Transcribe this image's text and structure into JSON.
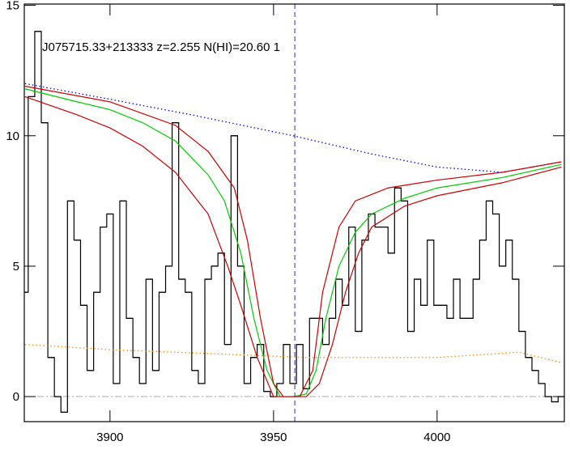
{
  "chart_data": {
    "type": "line",
    "annotation": "J075715.33+213333 z=2.255 N(HI)=20.60 1",
    "xlim": [
      3873.8,
      4038.9
    ],
    "ylim": [
      -0.96,
      15.05
    ],
    "xticks": [
      3900,
      3950,
      4000
    ],
    "yticks": [
      0,
      5,
      10,
      15
    ],
    "reference_x": 3956.5,
    "reference_y": 0,
    "series": [
      {
        "color": "#000000",
        "style": "step",
        "x": [
          3874,
          3876,
          3878,
          3880,
          3882,
          3884,
          3886,
          3888,
          3890,
          3892,
          3894,
          3896,
          3898,
          3900,
          3902,
          3904,
          3906,
          3908,
          3910,
          3912,
          3914,
          3916,
          3918,
          3920,
          3922,
          3924,
          3926,
          3928,
          3930,
          3932,
          3934,
          3936,
          3938,
          3940,
          3942,
          3944,
          3946,
          3948,
          3950,
          3952,
          3954,
          3956,
          3958,
          3960,
          3962,
          3964,
          3966,
          3968,
          3970,
          3972,
          3974,
          3976,
          3978,
          3980,
          3982,
          3984,
          3986,
          3988,
          3990,
          3992,
          3994,
          3996,
          3998,
          4000,
          4002,
          4004,
          4006,
          4008,
          4010,
          4012,
          4014,
          4016,
          4018,
          4020,
          4022,
          4024,
          4026,
          4028,
          4030,
          4032,
          4034,
          4036,
          4038
        ],
        "values": [
          4,
          11.5,
          14,
          10.5,
          1.5,
          0,
          -0.6,
          7.5,
          6,
          3.5,
          1,
          4,
          6.5,
          7,
          0.5,
          7.5,
          3,
          1.5,
          0.5,
          4.5,
          1,
          4,
          5,
          10.5,
          4.5,
          4,
          1,
          0.5,
          4.5,
          5,
          5.5,
          2,
          10,
          5,
          0.5,
          1.5,
          2,
          0.2,
          0,
          0.5,
          2,
          0.5,
          2,
          0.3,
          3,
          3,
          2,
          3,
          4.5,
          3.5,
          6.5,
          2.5,
          6,
          7,
          6.5,
          6.5,
          5.5,
          8,
          7.5,
          2.5,
          4.5,
          3.5,
          6,
          3.5,
          3.5,
          3,
          4.5,
          3,
          3,
          4.5,
          6,
          7.5,
          7,
          5,
          6,
          4.5,
          2.5,
          1.5,
          1,
          0.5,
          0,
          -0.2,
          0
        ]
      },
      {
        "color": "#0000ff",
        "style": "dotted",
        "x": [
          3874,
          3900,
          3925,
          3956,
          3980,
          4000,
          4020,
          4038
        ],
        "values": [
          12,
          11.4,
          10.8,
          10,
          9.3,
          8.8,
          8.6,
          9
        ]
      },
      {
        "color": "#00cc00",
        "style": "solid",
        "x": [
          3874,
          3890,
          3900,
          3910,
          3920,
          3930,
          3935,
          3940,
          3944,
          3948,
          3952,
          3956,
          3960,
          3963,
          3966,
          3970,
          3975,
          3980,
          3990,
          4000,
          4020,
          4038
        ],
        "values": [
          11.8,
          11.3,
          11,
          10.5,
          9.8,
          8.5,
          7.5,
          5.5,
          3,
          1,
          0,
          0,
          0.1,
          1,
          3,
          5,
          6.3,
          7,
          7.6,
          8,
          8.4,
          8.9
        ]
      },
      {
        "color": "#cc0000",
        "style": "solid",
        "x": [
          3874,
          3900,
          3920,
          3930,
          3938,
          3942,
          3946,
          3950,
          3953,
          3958,
          3962,
          3965,
          3970,
          3975,
          3985,
          4000,
          4020,
          4038
        ],
        "values": [
          11.9,
          11.3,
          10.4,
          9.4,
          8,
          6,
          3,
          0.5,
          0,
          0,
          1,
          4,
          6.5,
          7.5,
          8,
          8.3,
          8.6,
          9
        ]
      },
      {
        "color": "#cc0000",
        "style": "solid",
        "x": [
          3874,
          3890,
          3900,
          3910,
          3920,
          3930,
          3936,
          3940,
          3945,
          3950,
          3960,
          3964,
          3968,
          3972,
          3976,
          3980,
          3990,
          4000,
          4020,
          4038
        ],
        "values": [
          11.5,
          10.8,
          10.3,
          9.6,
          8.6,
          7,
          5,
          3.5,
          1.5,
          0,
          0,
          0.5,
          2,
          4,
          5.5,
          6.5,
          7.3,
          7.7,
          8.2,
          8.8
        ]
      },
      {
        "color": "#ff8c00",
        "style": "dotted",
        "x": [
          3874,
          3900,
          3920,
          3940,
          3960,
          4000,
          4025,
          4038
        ],
        "values": [
          2,
          1.8,
          1.7,
          1.6,
          1.5,
          1.5,
          1.7,
          1.3
        ]
      }
    ]
  }
}
